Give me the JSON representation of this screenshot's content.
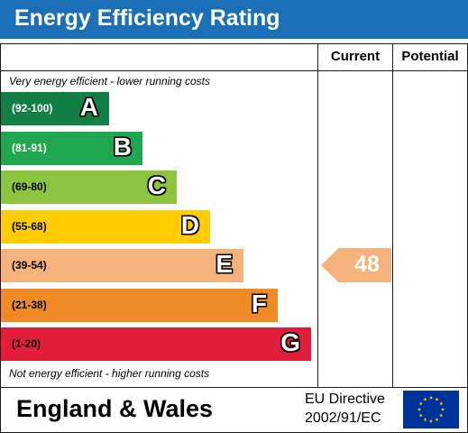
{
  "header": {
    "title": "Energy Efficiency Rating"
  },
  "columns": {
    "current": "Current",
    "potential": "Potential"
  },
  "captions": {
    "top": "Very energy efficient - lower running costs",
    "bottom": "Not energy efficient - higher running costs"
  },
  "colors": {
    "header": "#1a6fb6",
    "bands": [
      "#127f45",
      "#1fa84f",
      "#8cc43f",
      "#ffcc00",
      "#f5b27a",
      "#f08a25",
      "#e31d3c"
    ]
  },
  "chart_data": {
    "type": "bar",
    "title": "Energy Efficiency Rating",
    "bands": [
      {
        "letter": "A",
        "range": "(92-100)"
      },
      {
        "letter": "B",
        "range": "(81-91)"
      },
      {
        "letter": "C",
        "range": "(69-80)"
      },
      {
        "letter": "D",
        "range": "(55-68)"
      },
      {
        "letter": "E",
        "range": "(39-54)"
      },
      {
        "letter": "F",
        "range": "(21-38)"
      },
      {
        "letter": "G",
        "range": "(1-20)"
      }
    ],
    "current": {
      "value": "48",
      "band": "E"
    },
    "potential": null
  },
  "footer": {
    "region": "England & Wales",
    "directive_line1": "EU Directive",
    "directive_line2": "2002/91/EC"
  }
}
